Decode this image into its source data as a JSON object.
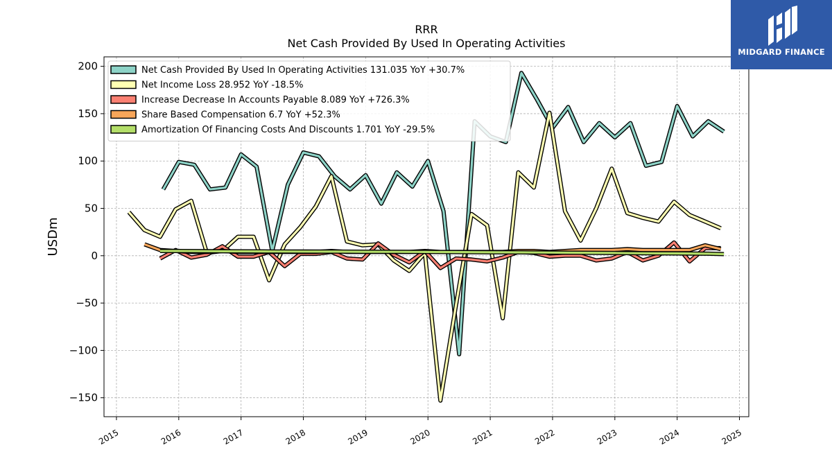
{
  "chart_data": {
    "type": "line",
    "title": "RRR",
    "subtitle": "Net Cash Provided By Used In Operating Activities",
    "ylabel": "USDm",
    "xlabel": "",
    "xlim": [
      2014.8,
      2025.15
    ],
    "ylim": [
      -170,
      210
    ],
    "yticks": [
      -150,
      -100,
      -50,
      0,
      50,
      100,
      150,
      200
    ],
    "yticklabels": [
      "−150",
      "−100",
      "−50",
      "0",
      "50",
      "100",
      "150",
      "200"
    ],
    "xticks": [
      2015,
      2016,
      2017,
      2018,
      2019,
      2020,
      2021,
      2022,
      2023,
      2024,
      2025
    ],
    "grid": true,
    "legend_position": "top-left",
    "series": [
      {
        "name": "Net Cash Provided By Used In Operating Activities  131.035 YoY +30.7%",
        "color": "#8dd3c7",
        "x": [
          2015.75,
          2016.0,
          2016.25,
          2016.5,
          2016.75,
          2017.0,
          2017.25,
          2017.5,
          2017.75,
          2018.0,
          2018.25,
          2018.5,
          2018.75,
          2019.0,
          2019.25,
          2019.5,
          2019.75,
          2020.0,
          2020.25,
          2020.5,
          2020.75,
          2021.0,
          2021.25,
          2021.5,
          2021.75,
          2022.0,
          2022.25,
          2022.5,
          2022.75,
          2023.0,
          2023.25,
          2023.5,
          2023.75,
          2024.0,
          2024.25,
          2024.5,
          2024.75
        ],
        "y": [
          70,
          99,
          96,
          70,
          72,
          107,
          94,
          5,
          75,
          109,
          105,
          84,
          70,
          85,
          55,
          88,
          73,
          100,
          47,
          -104,
          142,
          126,
          120,
          193,
          165,
          135,
          157,
          120,
          140,
          125,
          140,
          95,
          99,
          158,
          126,
          142,
          131
        ]
      },
      {
        "name": "Net Income Loss  28.952 YoY -18.5%",
        "color": "#ffffb3",
        "x": [
          2015.2,
          2015.45,
          2015.7,
          2015.95,
          2016.2,
          2016.45,
          2016.7,
          2016.95,
          2017.2,
          2017.45,
          2017.7,
          2017.95,
          2018.2,
          2018.45,
          2018.7,
          2018.95,
          2019.2,
          2019.45,
          2019.7,
          2019.95,
          2020.2,
          2020.45,
          2020.7,
          2020.95,
          2021.2,
          2021.45,
          2021.7,
          2021.95,
          2022.2,
          2022.45,
          2022.7,
          2022.95,
          2023.2,
          2023.45,
          2023.7,
          2023.95,
          2024.2,
          2024.45,
          2024.7
        ],
        "y": [
          46,
          27,
          20,
          49,
          58,
          3,
          5,
          20,
          20,
          -26,
          12,
          30,
          52,
          84,
          15,
          11,
          12,
          -5,
          -16,
          3,
          -153,
          -52,
          44,
          32,
          -66,
          88,
          72,
          151,
          47,
          16,
          50,
          92,
          45,
          40,
          36,
          57,
          43,
          36,
          29
        ]
      },
      {
        "name": "Increase Decrease In Accounts Payable  8.089 YoY +726.3%",
        "color": "#fb8072",
        "x": [
          2015.7,
          2015.95,
          2016.2,
          2016.45,
          2016.7,
          2016.95,
          2017.2,
          2017.45,
          2017.7,
          2017.95,
          2018.2,
          2018.45,
          2018.7,
          2018.95,
          2019.2,
          2019.45,
          2019.7,
          2019.95,
          2020.2,
          2020.45,
          2020.7,
          2020.95,
          2021.2,
          2021.45,
          2021.7,
          2021.95,
          2022.2,
          2022.45,
          2022.7,
          2022.95,
          2023.2,
          2023.45,
          2023.7,
          2023.95,
          2024.2,
          2024.45,
          2024.7
        ],
        "y": [
          -3,
          6,
          -2,
          1,
          10,
          -1,
          -1,
          4,
          -11,
          2,
          2,
          4,
          -3,
          -4,
          13,
          1,
          -7,
          5,
          -13,
          -3,
          -4,
          -6,
          -2,
          4,
          3,
          -1,
          0,
          0,
          -5,
          -3,
          4,
          -5,
          0,
          14,
          -6,
          8,
          8
        ]
      },
      {
        "name": "Share Based Compensation  6.7 YoY +52.3%",
        "color": "#f8a65a",
        "x": [
          2015.45,
          2015.7,
          2015.95,
          2016.2,
          2016.45,
          2016.7,
          2016.95,
          2017.2,
          2017.45,
          2017.7,
          2017.95,
          2018.2,
          2018.45,
          2018.7,
          2018.95,
          2019.2,
          2019.45,
          2019.7,
          2019.95,
          2020.2,
          2020.45,
          2020.7,
          2020.95,
          2021.2,
          2021.45,
          2021.7,
          2021.95,
          2022.2,
          2022.45,
          2022.7,
          2022.95,
          2023.2,
          2023.45,
          2023.7,
          2023.95,
          2024.2,
          2024.45,
          2024.7
        ],
        "y": [
          12,
          6,
          5,
          4,
          4,
          5,
          4,
          4,
          4,
          4,
          4,
          4,
          5,
          4,
          4,
          4,
          4,
          4,
          5,
          4,
          4,
          4,
          4,
          4,
          5,
          5,
          4,
          5,
          6,
          6,
          6,
          7,
          6,
          6,
          6,
          6,
          11,
          7
        ]
      },
      {
        "name": "Amortization Of Financing Costs And Discounts  1.701 YoY -29.5%",
        "color": "#b3de69",
        "x": [
          2015.7,
          2016.0,
          2016.5,
          2017.0,
          2017.5,
          2018.0,
          2018.5,
          2019.0,
          2019.5,
          2020.0,
          2020.5,
          2021.0,
          2021.5,
          2022.0,
          2022.5,
          2023.0,
          2023.5,
          2024.0,
          2024.5,
          2024.75
        ],
        "y": [
          5,
          5,
          4.8,
          4.6,
          4.5,
          4.4,
          4.3,
          4.2,
          4.1,
          4,
          3.8,
          3.6,
          3.5,
          3.3,
          3.1,
          2.9,
          2.6,
          2.4,
          2.1,
          1.7
        ]
      }
    ]
  },
  "logo": {
    "text": "MIDGARD FINANCE",
    "background": "#2f5aa8"
  }
}
